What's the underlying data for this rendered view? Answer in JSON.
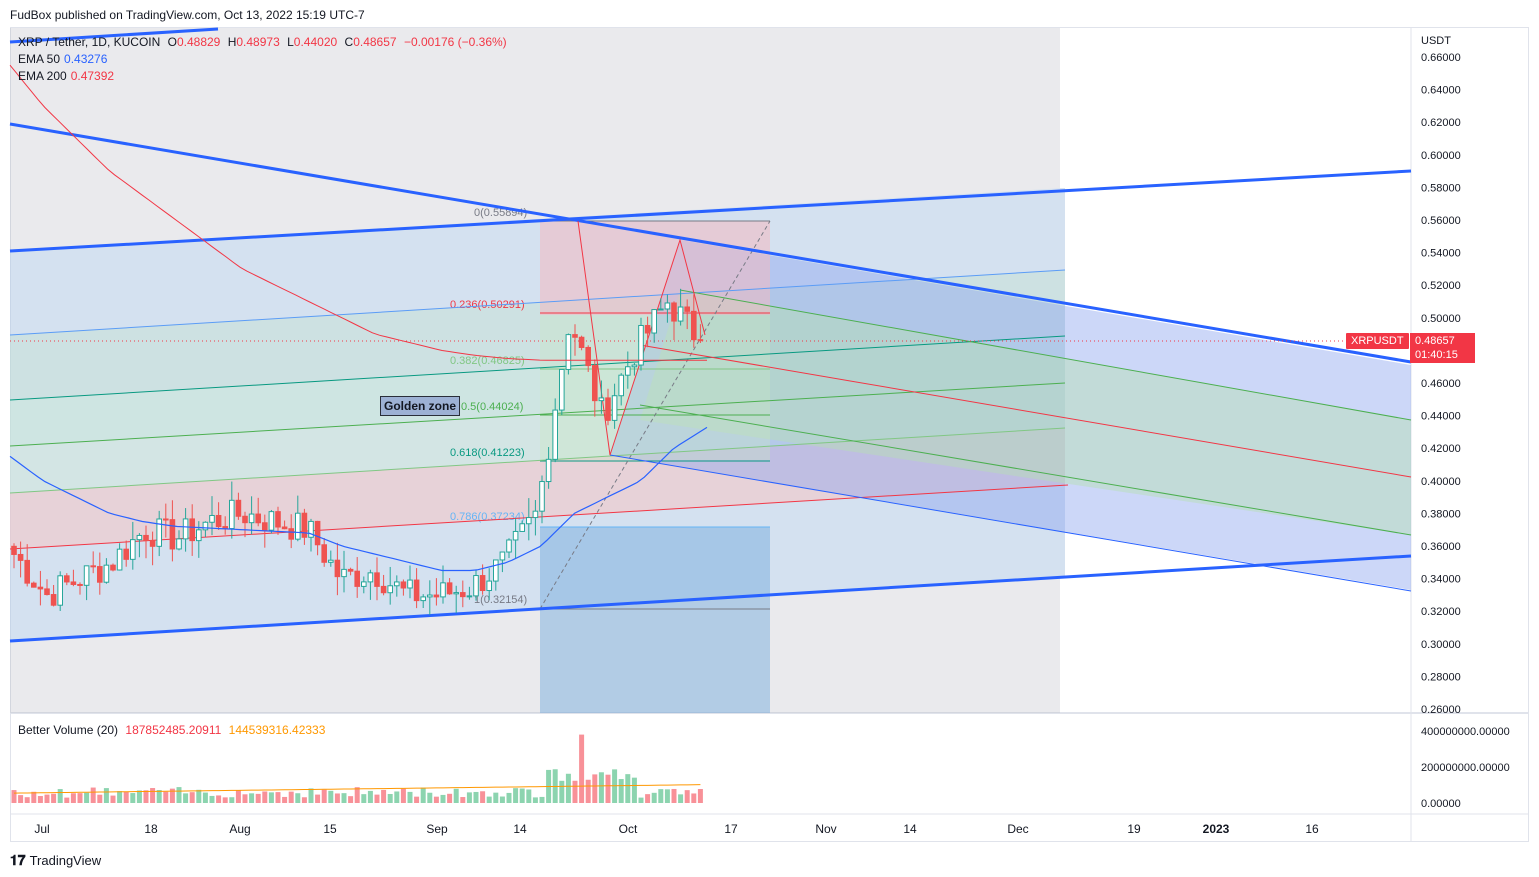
{
  "header": {
    "published_by": "FudBox published on TradingView.com, Oct 13, 2022 15:19 UTC-7"
  },
  "symbol": {
    "name": "XRP / Tether, 1D, KUCOIN",
    "open_label": "O",
    "open": "0.48829",
    "high_label": "H",
    "high": "0.48973",
    "low_label": "L",
    "low": "0.44020",
    "close_label": "C",
    "close": "0.48657",
    "change": "−0.00176 (−0.36%)"
  },
  "indicators": {
    "ema50_label": "EMA 50",
    "ema50_value": "0.43276",
    "ema200_label": "EMA 200",
    "ema200_value": "0.47392",
    "volume_label": "Better Volume (20)",
    "volume_value1": "187852485.20911",
    "volume_value2": "144539316.42333"
  },
  "price_axis": {
    "currency": "USDT",
    "ticks": [
      "0.66000",
      "0.64000",
      "0.62000",
      "0.60000",
      "0.58000",
      "0.56000",
      "0.54000",
      "0.52000",
      "0.50000",
      "0.46000",
      "0.44000",
      "0.42000",
      "0.40000",
      "0.38000",
      "0.36000",
      "0.34000",
      "0.32000",
      "0.30000",
      "0.28000",
      "0.26000"
    ],
    "last_price_label": "XRPUSDT",
    "last_price": "0.48657",
    "countdown": "01:40:15"
  },
  "volume_axis": {
    "ticks": [
      "400000000.00000",
      "200000000.00000",
      "0.00000"
    ]
  },
  "time_axis": {
    "ticks": [
      "Jul",
      "18",
      "Aug",
      "15",
      "Sep",
      "14",
      "Oct",
      "17",
      "Nov",
      "14",
      "Dec",
      "19",
      "2023",
      "16"
    ]
  },
  "fib": {
    "levels": [
      "0(0.55894)",
      "0.236(0.50291)",
      "0.382(0.46825)",
      "0.5(0.44024)",
      "0.618(0.41223)",
      "0.786(0.37234)",
      "1(0.32154)"
    ]
  },
  "annotation": {
    "golden_zone": "Golden zone"
  },
  "footer": {
    "brand": "TradingView"
  },
  "colors": {
    "up": "#26a69a",
    "down": "#ef5350",
    "channel": "#2962ff",
    "ema50": "#2962ff",
    "ema200": "#f23645"
  },
  "chart_data": {
    "type": "candlestick",
    "title": "XRP / Tether, 1D, KUCOIN",
    "ylim": [
      0.255,
      0.67
    ],
    "x": [
      "2022-06-30",
      "2022-07-05",
      "2022-07-10",
      "2022-07-15",
      "2022-07-20",
      "2022-07-25",
      "2022-07-30",
      "2022-08-04",
      "2022-08-09",
      "2022-08-14",
      "2022-08-19",
      "2022-08-24",
      "2022-08-29",
      "2022-09-03",
      "2022-09-08",
      "2022-09-13",
      "2022-09-18",
      "2022-09-23",
      "2022-09-28",
      "2022-10-03",
      "2022-10-08",
      "2022-10-13"
    ],
    "close": [
      0.355,
      0.33,
      0.34,
      0.35,
      0.37,
      0.365,
      0.375,
      0.38,
      0.375,
      0.37,
      0.34,
      0.345,
      0.33,
      0.33,
      0.335,
      0.35,
      0.38,
      0.5,
      0.44,
      0.48,
      0.51,
      0.48657
    ],
    "ema50": [
      0.415,
      0.4,
      0.39,
      0.38,
      0.375,
      0.372,
      0.371,
      0.37,
      0.369,
      0.368,
      0.36,
      0.355,
      0.35,
      0.345,
      0.345,
      0.35,
      0.36,
      0.38,
      0.39,
      0.4,
      0.42,
      0.43276
    ],
    "ema200": [
      0.655,
      0.63,
      0.61,
      0.59,
      0.575,
      0.56,
      0.545,
      0.53,
      0.52,
      0.51,
      0.5,
      0.49,
      0.485,
      0.48,
      0.477,
      0.475,
      0.474,
      0.474,
      0.474,
      0.474,
      0.474,
      0.47392
    ],
    "volume_max": 400000000
  }
}
